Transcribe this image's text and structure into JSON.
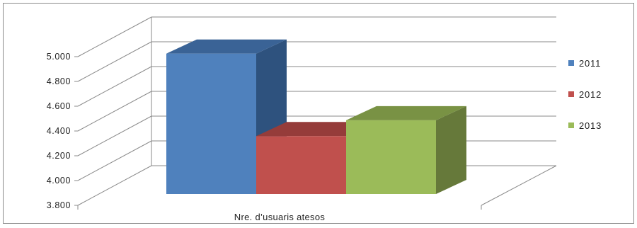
{
  "chart_data": {
    "type": "bar",
    "style": "3d-clustered-column",
    "categories": [
      "Nre. d’usuaris atesos"
    ],
    "series": [
      {
        "name": "2011",
        "values": [
          4956
        ],
        "color": "#4F81BD",
        "side": "#2E527E",
        "top": "#3A6396"
      },
      {
        "name": "2012",
        "values": [
          4290
        ],
        "color": "#C0504D",
        "side": "#7F3533",
        "top": "#953C3A"
      },
      {
        "name": "2013",
        "values": [
          4418
        ],
        "color": "#9BBB59",
        "side": "#66793A",
        "top": "#799244"
      }
    ],
    "ylim": [
      3800,
      5000
    ],
    "yticks": [
      {
        "value": 3800,
        "label": "3.800"
      },
      {
        "value": 4000,
        "label": "4.000"
      },
      {
        "value": 4200,
        "label": "4.200"
      },
      {
        "value": 4400,
        "label": "4.400"
      },
      {
        "value": 4600,
        "label": "4.600"
      },
      {
        "value": 4800,
        "label": "4.800"
      },
      {
        "value": 5000,
        "label": "5.000"
      }
    ],
    "grid": true,
    "legend": "right",
    "title": "",
    "xlabel": "",
    "ylabel": ""
  }
}
